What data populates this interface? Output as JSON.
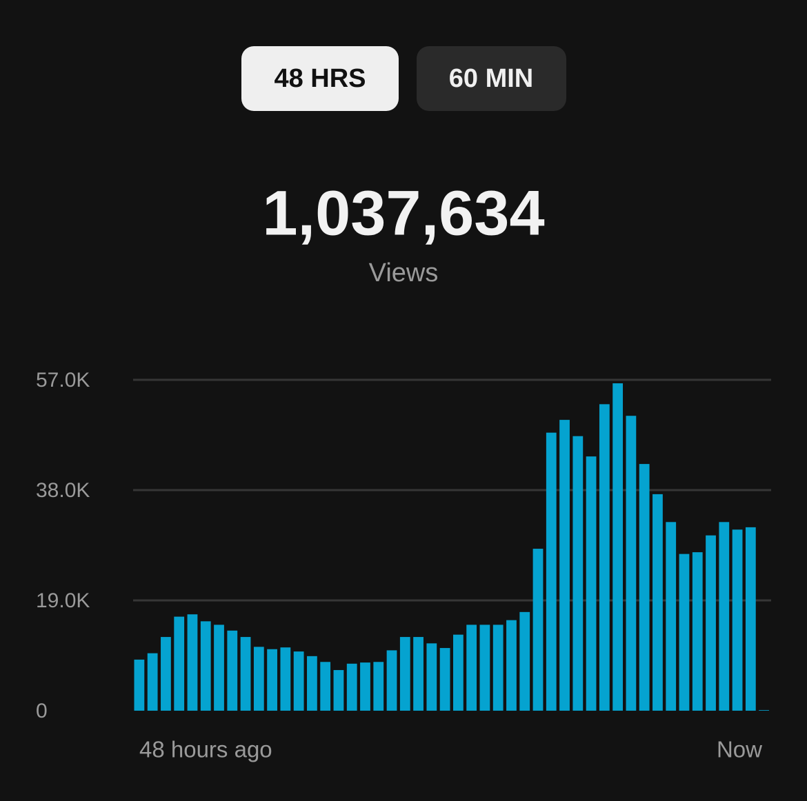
{
  "tabs": [
    "48 HRS",
    "60 MIN"
  ],
  "total": {
    "value": "1,037,634",
    "label": "Views"
  },
  "chart_data": {
    "type": "bar",
    "color": "#05a3d0",
    "grid": true,
    "categories": [
      "48 hours ago",
      null,
      null,
      null,
      null,
      null,
      null,
      null,
      null,
      null,
      null,
      null,
      null,
      null,
      null,
      null,
      null,
      null,
      null,
      null,
      null,
      null,
      null,
      null,
      null,
      null,
      null,
      null,
      null,
      null,
      null,
      null,
      null,
      null,
      null,
      null,
      null,
      null,
      null,
      null,
      null,
      null,
      null,
      null,
      null,
      null,
      null,
      "Now"
    ],
    "values": [
      8800,
      9900,
      12700,
      16200,
      16600,
      15400,
      14800,
      13800,
      12700,
      11000,
      10600,
      10900,
      10200,
      9400,
      8400,
      7000,
      8100,
      8300,
      8400,
      10400,
      12700,
      12700,
      11600,
      10800,
      13100,
      14800,
      14800,
      14800,
      15600,
      17000,
      27900,
      47900,
      50100,
      47300,
      43800,
      52800,
      56400,
      50800,
      42500,
      37300,
      32500,
      27000,
      27300,
      30200,
      32500,
      31200,
      31600,
      100
    ],
    "ylim": [
      0,
      57000
    ],
    "yticks": [
      0,
      {
        "value": 19000,
        "label": "19.0K"
      },
      {
        "value": 38000,
        "label": "38.0K"
      },
      {
        "value": 57000,
        "label": "57.0K"
      }
    ]
  }
}
